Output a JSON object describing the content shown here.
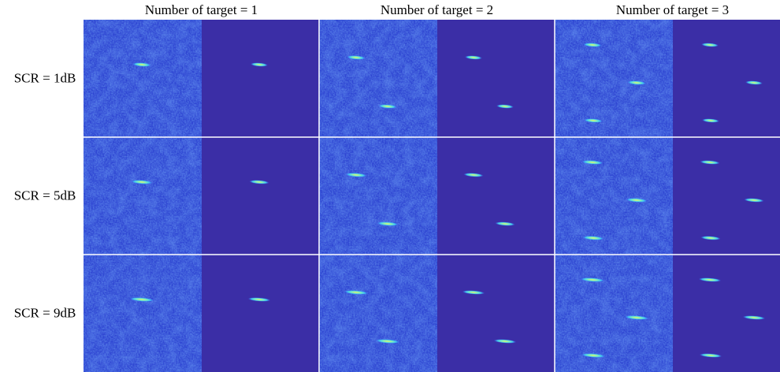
{
  "columns": [
    "Number of target = 1",
    "Number of target = 2",
    "Number of target = 3"
  ],
  "rows": [
    "SCR = 1dB",
    "SCR = 5dB",
    "SCR = 9dB"
  ]
}
